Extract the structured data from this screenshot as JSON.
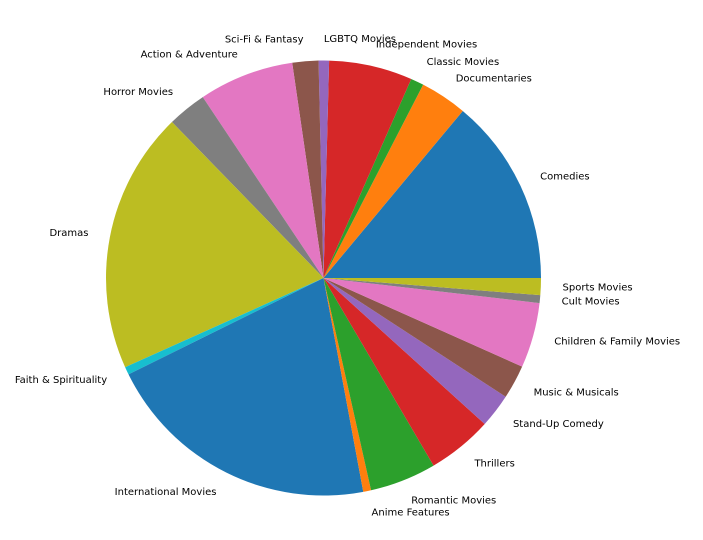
{
  "chart_data": {
    "type": "pie",
    "title": "",
    "start_angle_deg": 0,
    "direction": "counterclockwise",
    "legend": "none",
    "slices": [
      {
        "label": "Comedies",
        "value": 14.4,
        "color": "#1f77b4"
      },
      {
        "label": "Documentaries",
        "value": 3.6,
        "color": "#ff7f0e"
      },
      {
        "label": "Classic Movies",
        "value": 1.0,
        "color": "#2ca02c"
      },
      {
        "label": "Independent Movies",
        "value": 6.4,
        "color": "#d62728"
      },
      {
        "label": "LGBTQ Movies",
        "value": 0.8,
        "color": "#9467bd"
      },
      {
        "label": "Sci-Fi & Fantasy",
        "value": 2.0,
        "color": "#8c564b"
      },
      {
        "label": "Action & Adventure",
        "value": 7.3,
        "color": "#e377c2"
      },
      {
        "label": "Horror Movies",
        "value": 3.0,
        "color": "#7f7f7f"
      },
      {
        "label": "Dramas",
        "value": 20.1,
        "color": "#bcbd22"
      },
      {
        "label": "Faith & Spirituality",
        "value": 0.6,
        "color": "#17becf"
      },
      {
        "label": "International Movies",
        "value": 21.3,
        "color": "#1f77b4"
      },
      {
        "label": "Anime Features",
        "value": 0.6,
        "color": "#ff7f0e"
      },
      {
        "label": "Romantic Movies",
        "value": 5.1,
        "color": "#2ca02c"
      },
      {
        "label": "Thrillers",
        "value": 5.0,
        "color": "#d62728"
      },
      {
        "label": "Stand-Up Comedy",
        "value": 2.6,
        "color": "#9467bd"
      },
      {
        "label": "Music & Musicals",
        "value": 2.6,
        "color": "#8c564b"
      },
      {
        "label": "Children & Family Movies",
        "value": 5.0,
        "color": "#e377c2"
      },
      {
        "label": "Cult Movies",
        "value": 0.6,
        "color": "#7f7f7f"
      },
      {
        "label": "Sports Movies",
        "value": 1.3,
        "color": "#bcbd22"
      }
    ]
  }
}
